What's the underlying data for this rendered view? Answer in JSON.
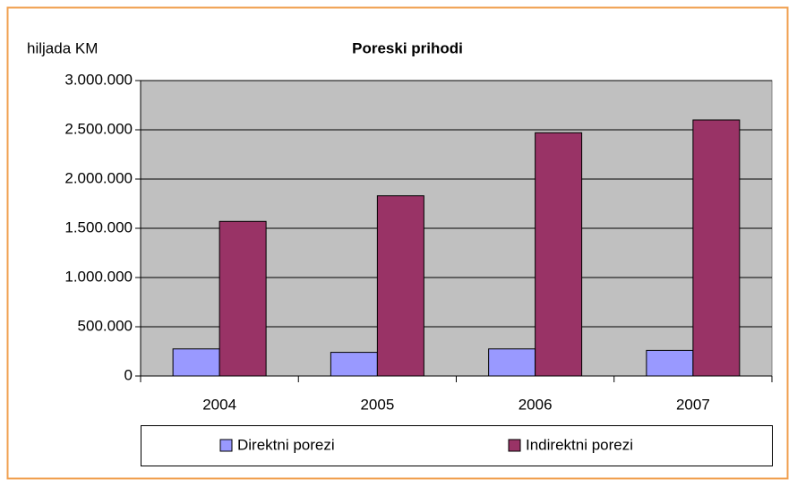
{
  "chart_data": {
    "type": "bar",
    "title": "Poreski prihodi",
    "y_label": "hiljada KM",
    "categories": [
      "2004",
      "2005",
      "2006",
      "2007"
    ],
    "series": [
      {
        "name": "Direktni porezi",
        "color": "#9999ff",
        "values": [
          275000,
          240000,
          275000,
          260000
        ]
      },
      {
        "name": "Indirektni porezi",
        "color": "#993366",
        "values": [
          1570000,
          1830000,
          2470000,
          2600000
        ]
      }
    ],
    "ylim": [
      0,
      3000000
    ],
    "yticks": [
      0,
      {
        "value": 500000,
        "label": "500.000"
      },
      {
        "value": 1000000,
        "label": "1.000.000"
      },
      {
        "value": 1500000,
        "label": "1.500.000"
      },
      {
        "value": 2000000,
        "label": "2.000.000"
      },
      {
        "value": 2500000,
        "label": "2.500.000"
      },
      {
        "value": 3000000,
        "label": "3.000.000"
      }
    ],
    "grid": true,
    "legend": "bottom"
  }
}
